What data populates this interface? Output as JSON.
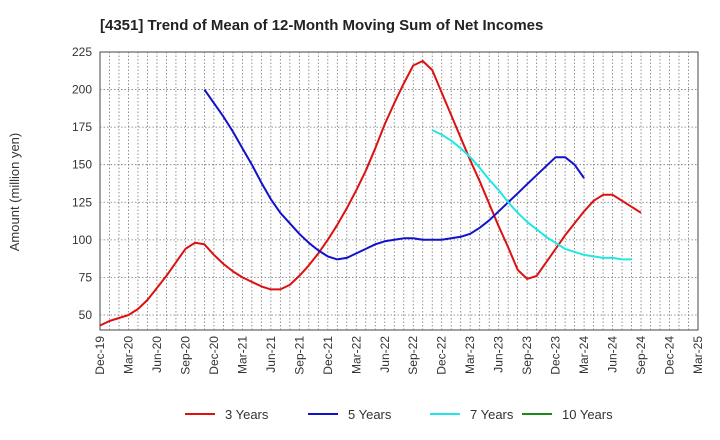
{
  "chart_data": {
    "type": "line",
    "title": "[4351]  Trend of Mean of 12-Month Moving Sum of Net Incomes",
    "ylabel": "Amount (million yen)",
    "xlabel": "",
    "ylim": [
      40,
      225
    ],
    "yticks": [
      50,
      75,
      100,
      125,
      150,
      175,
      200,
      225
    ],
    "xticks": [
      "Dec-19",
      "Mar-20",
      "Jun-20",
      "Sep-20",
      "Dec-20",
      "Mar-21",
      "Jun-21",
      "Sep-21",
      "Dec-21",
      "Mar-22",
      "Jun-22",
      "Sep-22",
      "Dec-22",
      "Mar-23",
      "Jun-23",
      "Sep-23",
      "Dec-23",
      "Mar-24",
      "Jun-24",
      "Sep-24",
      "Dec-24",
      "Mar-25"
    ],
    "grid": true,
    "legend_position": "bottom",
    "series": [
      {
        "name": "3 Years",
        "color": "#dd1111",
        "start": "Dec-19",
        "values": [
          43,
          46,
          48,
          50,
          54,
          60,
          68,
          76,
          85,
          94,
          98,
          97,
          90,
          84,
          79,
          75,
          72,
          69,
          67,
          67,
          70,
          76,
          83,
          91,
          100,
          110,
          121,
          133,
          146,
          161,
          177,
          191,
          204,
          216,
          219,
          213,
          198,
          183,
          168,
          153,
          139,
          124,
          109,
          95,
          80,
          74,
          76,
          85,
          94,
          103,
          111,
          119,
          126,
          130,
          130,
          126,
          122,
          118
        ]
      },
      {
        "name": "5 Years",
        "color": "#1111cc",
        "start": "Nov-20",
        "values": [
          200,
          191,
          182,
          172,
          161,
          150,
          138,
          127,
          118,
          111,
          104,
          98,
          93,
          89,
          87,
          88,
          91,
          94,
          97,
          99,
          100,
          101,
          101,
          100,
          100,
          100,
          101,
          102,
          104,
          108,
          113,
          119,
          125,
          131,
          137,
          143,
          149,
          155,
          155,
          150,
          141
        ]
      },
      {
        "name": "7 Years",
        "color": "#22e6e6",
        "start": "Nov-22",
        "values": [
          173,
          170,
          166,
          161,
          155,
          148,
          140,
          133,
          125,
          118,
          112,
          107,
          102,
          98,
          94,
          92,
          90,
          89,
          88,
          88,
          87,
          87
        ]
      },
      {
        "name": "10 Years",
        "color": "#1a8a1a",
        "start": "Dec-19",
        "values": []
      }
    ]
  }
}
